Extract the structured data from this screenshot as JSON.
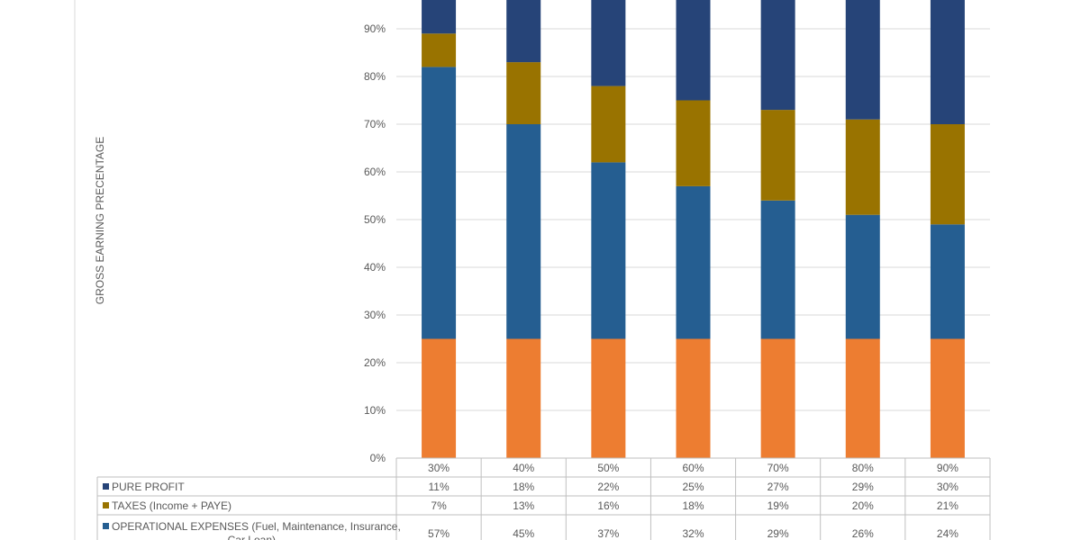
{
  "chart_data": {
    "type": "bar",
    "stacked": true,
    "ylabel": "GROSS EARNING PRECENTAGE",
    "ylim": [
      0,
      100
    ],
    "y_ticks": [
      "0%",
      "10%",
      "20%",
      "30%",
      "40%",
      "50%",
      "60%",
      "70%",
      "80%",
      "90%"
    ],
    "y_tick_values": [
      0,
      10,
      20,
      30,
      40,
      50,
      60,
      70,
      80,
      90
    ],
    "categories": [
      "30%",
      "40%",
      "50%",
      "60%",
      "70%",
      "80%",
      "90%"
    ],
    "grid": true,
    "series": [
      {
        "name": "",
        "color": "#ED7D31",
        "values": [
          25,
          25,
          25,
          25,
          25,
          25,
          25
        ]
      },
      {
        "name": "OPERATIONAL EXPENSES (Fuel, Maintenance, Insurance, Car Loan)",
        "color": "#255E91",
        "values": [
          57,
          45,
          37,
          32,
          29,
          26,
          24
        ]
      },
      {
        "name": "TAXES (Income + PAYE)",
        "color": "#997300",
        "values": [
          7,
          13,
          16,
          18,
          19,
          20,
          21
        ]
      },
      {
        "name": "PURE PROFIT",
        "color": "#264478",
        "values": [
          11,
          18,
          22,
          25,
          27,
          29,
          30
        ]
      }
    ],
    "data_table": {
      "rows": [
        {
          "label": "PURE PROFIT",
          "color": "#264478",
          "values": [
            "11%",
            "18%",
            "22%",
            "25%",
            "27%",
            "29%",
            "30%"
          ]
        },
        {
          "label": "TAXES (Income + PAYE)",
          "color": "#997300",
          "values": [
            "7%",
            "13%",
            "16%",
            "18%",
            "19%",
            "20%",
            "21%"
          ]
        },
        {
          "label_lines": [
            "OPERATIONAL EXPENSES (Fuel, Maintenance, Insurance,",
            "Car Loan)"
          ],
          "color": "#255E91",
          "values": [
            "57%",
            "45%",
            "37%",
            "32%",
            "29%",
            "26%",
            "24%"
          ]
        }
      ]
    }
  }
}
